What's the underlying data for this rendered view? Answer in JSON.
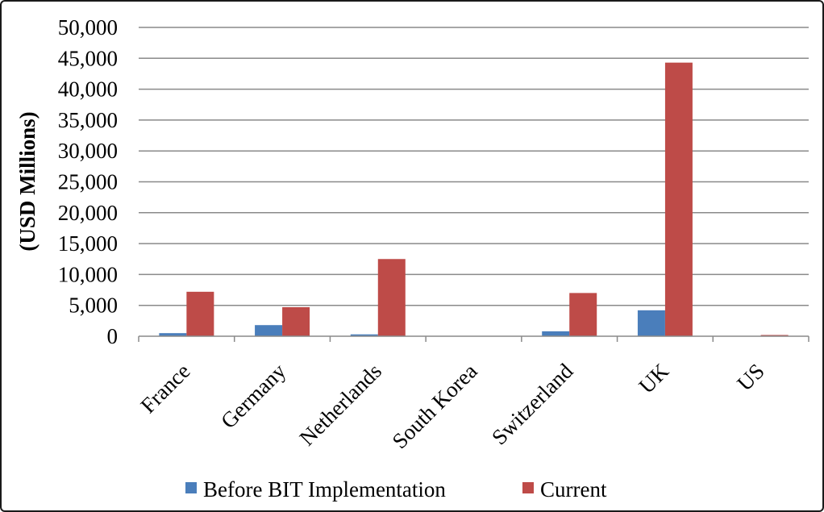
{
  "chart_data": {
    "type": "bar",
    "title": "",
    "xlabel": "",
    "ylabel": "(USD Millions)",
    "ylim": [
      0,
      50000
    ],
    "yticks": [
      "0",
      "5,000",
      "10,000",
      "15,000",
      "20,000",
      "25,000",
      "30,000",
      "35,000",
      "40,000",
      "45,000",
      "50,000"
    ],
    "grid": true,
    "legend_position": "bottom",
    "categories": [
      "France",
      "Germany",
      "Netherlands",
      "South Korea",
      "Switzerland",
      "UK",
      "US"
    ],
    "series": [
      {
        "name": "Before BIT Implementation",
        "color": "#4a7ebb",
        "values": [
          500,
          1800,
          300,
          0,
          800,
          4200,
          0
        ]
      },
      {
        "name": "Current",
        "color": "#be4b48",
        "values": [
          7200,
          4700,
          12500,
          0,
          7000,
          44300,
          200
        ]
      }
    ]
  }
}
